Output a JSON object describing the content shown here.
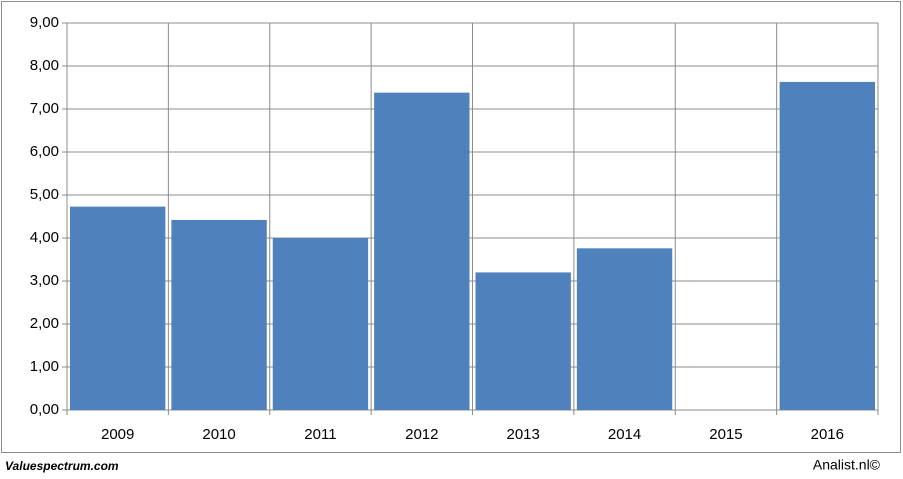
{
  "chart_data": {
    "type": "bar",
    "categories": [
      "2009",
      "2010",
      "2011",
      "2012",
      "2013",
      "2014",
      "2015",
      "2016"
    ],
    "values": [
      4.73,
      4.42,
      4.0,
      7.38,
      3.2,
      3.76,
      null,
      7.63
    ],
    "color": "#4f81bd",
    "ylim": [
      0,
      9
    ],
    "yticks": [
      {
        "value": 0,
        "label": "0,00"
      },
      {
        "value": 1,
        "label": "1,00"
      },
      {
        "value": 2,
        "label": "2,00"
      },
      {
        "value": 3,
        "label": "3,00"
      },
      {
        "value": 4,
        "label": "4,00"
      },
      {
        "value": 5,
        "label": "5,00"
      },
      {
        "value": 6,
        "label": "6,00"
      },
      {
        "value": 7,
        "label": "7,00"
      },
      {
        "value": 8,
        "label": "8,00"
      },
      {
        "value": 9,
        "label": "9,00"
      }
    ],
    "grid": true,
    "source_left": "Valuespectrum.com",
    "source_right": "Analist.nl©"
  }
}
